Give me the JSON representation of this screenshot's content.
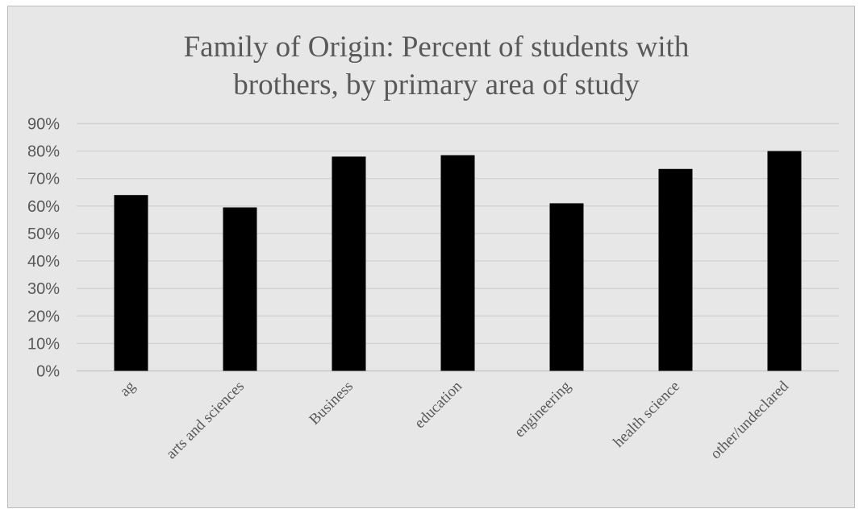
{
  "chart_data": {
    "type": "bar",
    "title": [
      "Family of Origin: Percent of students with",
      "brothers, by primary area of study"
    ],
    "xlabel": "",
    "ylabel": "",
    "categories": [
      "ag",
      "arts and sciences",
      "Business",
      "education",
      "engineering",
      "health science",
      "other/undeclared"
    ],
    "values": [
      64,
      59.5,
      78,
      78.5,
      61,
      73.5,
      80
    ],
    "ylim": [
      0,
      90
    ],
    "yticks": [
      0,
      10,
      20,
      30,
      40,
      50,
      60,
      70,
      80,
      90
    ],
    "ytick_labels": [
      "0%",
      "10%",
      "20%",
      "30%",
      "40%",
      "50%",
      "60%",
      "70%",
      "80%",
      "90%"
    ],
    "grid": true,
    "legend": "none",
    "colors": {
      "bar": "#000000",
      "background": "#e7e7e7",
      "text": "#595959",
      "grid": "#d2d2d2"
    }
  }
}
